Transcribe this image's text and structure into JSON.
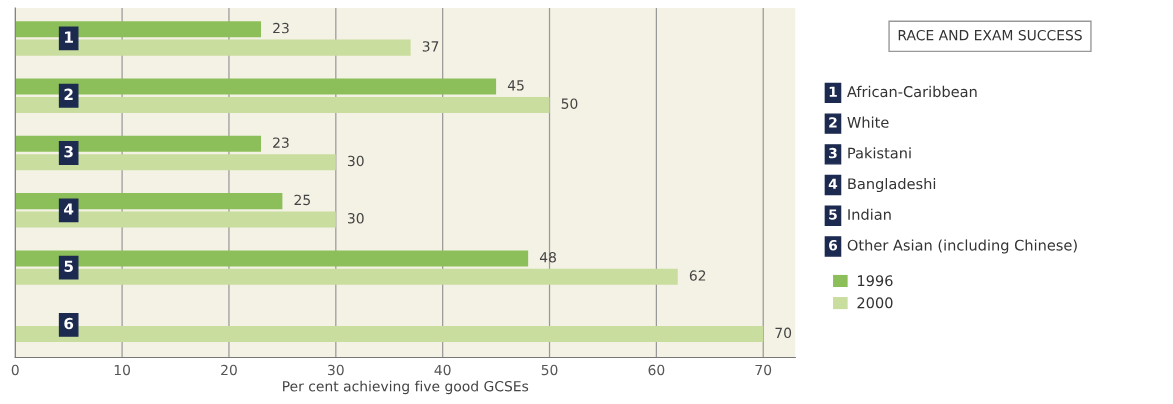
{
  "chart_data": {
    "type": "bar",
    "orientation": "horizontal",
    "title": "RACE AND EXAM SUCCESS",
    "xlabel": "Per cent achieving five good GCSEs",
    "categories": [
      "1",
      "2",
      "3",
      "4",
      "5",
      "6"
    ],
    "series": [
      {
        "name": "1996",
        "color": "#8cbf5a",
        "values": [
          23,
          45,
          23,
          25,
          48,
          null
        ]
      },
      {
        "name": "2000",
        "color": "#c8dd9e",
        "values": [
          37,
          50,
          30,
          30,
          62,
          70
        ]
      }
    ],
    "annotations": [
      "African-Caribbean",
      "White",
      "Pakistani",
      "Bangladeshi",
      "Indian",
      "Other Asian (including Chinese)"
    ],
    "xlim": [
      0,
      73
    ],
    "xticks": [
      0,
      10,
      20,
      30,
      40,
      50,
      60,
      70
    ],
    "grid": "x",
    "data_labels": true,
    "legend": "right"
  }
}
